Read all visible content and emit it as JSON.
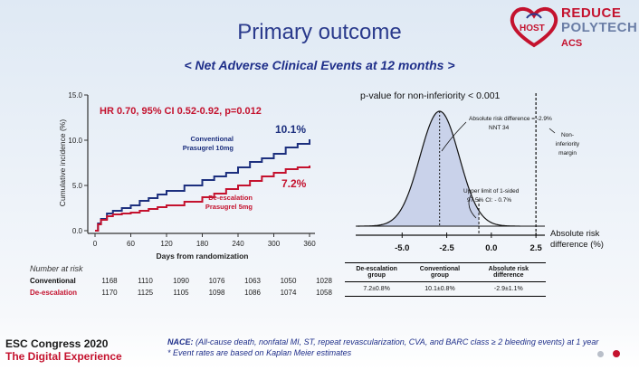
{
  "header": {
    "title": "Primary outcome",
    "subtitle": "< Net Adverse Clinical Events at 12 months >"
  },
  "logo": {
    "host": "HOST",
    "reduce": "REDUCE",
    "polytech": "POLYTECH",
    "acs": "ACS"
  },
  "colors": {
    "conventional": "#1c2f7e",
    "deescalation": "#c4122e",
    "accent": "#c4122e"
  },
  "chart_data": [
    {
      "type": "line",
      "title": "",
      "annotation": "HR 0.70, 95% CI 0.52-0.92, p=0.012",
      "xlabel": "Days from randomization",
      "ylabel": "Cumulative incidence (%)",
      "xlim": [
        0,
        360
      ],
      "ylim": [
        0,
        15
      ],
      "x_ticks": [
        0,
        60,
        120,
        180,
        240,
        300,
        360
      ],
      "y_ticks": [
        0.0,
        5.0,
        10.0,
        15.0
      ],
      "y_tick_labels": [
        "0.0",
        "5.0",
        "10.0",
        "15.0"
      ],
      "series": [
        {
          "name": "Conventional Prasugrel 10mg",
          "label_lines": [
            "Conventional",
            "Prasugrel 10mg"
          ],
          "end_label": "10.1%",
          "x": [
            0,
            5,
            10,
            20,
            30,
            45,
            60,
            75,
            90,
            105,
            120,
            150,
            180,
            200,
            220,
            240,
            260,
            280,
            300,
            320,
            340,
            360
          ],
          "y": [
            0,
            0.8,
            1.3,
            1.9,
            2.2,
            2.5,
            2.8,
            3.3,
            3.6,
            4.0,
            4.4,
            5.0,
            5.6,
            6.0,
            6.4,
            7.0,
            7.6,
            8.0,
            8.5,
            9.2,
            9.6,
            10.1
          ]
        },
        {
          "name": "De-escalation Prasugrel 5mg",
          "label_lines": [
            "De-escalation",
            "Prasugrel 5mg"
          ],
          "end_label": "7.2%",
          "x": [
            0,
            5,
            10,
            20,
            30,
            45,
            60,
            75,
            90,
            105,
            120,
            150,
            180,
            200,
            220,
            240,
            260,
            280,
            300,
            320,
            340,
            360
          ],
          "y": [
            0,
            0.7,
            1.2,
            1.6,
            1.8,
            1.9,
            2.0,
            2.2,
            2.4,
            2.6,
            2.8,
            3.2,
            3.7,
            4.1,
            4.6,
            5.0,
            5.5,
            6.0,
            6.4,
            6.8,
            7.0,
            7.2
          ]
        }
      ]
    },
    {
      "type": "area",
      "title": "p-value for non-inferiority < 0.001",
      "xlabel": "Absolute risk difference (%)",
      "xlabel_lines": [
        "Absolute risk",
        "difference (%)"
      ],
      "x_ticks": [
        -5.0,
        -2.5,
        0.0,
        2.5
      ],
      "x_tick_labels": [
        "-5.0",
        "-2.5",
        "0.0",
        "2.5"
      ],
      "xlim": [
        -7.5,
        3.0
      ],
      "distribution": {
        "mean": -2.9,
        "sd": 1.1
      },
      "point_estimate": -2.9,
      "upper_limit": -0.7,
      "non_inferiority_margin": 2.5,
      "annotations": {
        "risk_difference": "Absolute risk difference = -2.9%",
        "nnt": "NNT 34",
        "upper_limit_lines": [
          "Upper limit of 1-sided",
          "97.5% CI: - 0.7%"
        ],
        "margin_lines": [
          "Non-",
          "inferiority",
          "margin"
        ]
      }
    }
  ],
  "risk_table": {
    "title": "Number at risk",
    "rows": [
      {
        "label": "Conventional",
        "values": [
          "1168",
          "1110",
          "1090",
          "1076",
          "1063",
          "1050",
          "1028"
        ]
      },
      {
        "label": "De-escalation",
        "values": [
          "1170",
          "1125",
          "1105",
          "1098",
          "1086",
          "1074",
          "1058"
        ]
      }
    ]
  },
  "event_table": {
    "headers": [
      "De-escalation group",
      "Conventional group",
      "Absolute risk difference"
    ],
    "row": [
      "7.2±0.8%",
      "10.1±0.8%",
      "-2.9±1.1%"
    ]
  },
  "footer": {
    "congress": "ESC Congress 2020",
    "experience": "The Digital Experience",
    "nace_label": "NACE:",
    "nace_text": "(All-cause death, nonfatal MI, ST, repeat revascularization, CVA, and BARC class ≥ 2 bleeding events) at 1 year",
    "note": "* Event rates are based on Kaplan Meier estimates"
  }
}
